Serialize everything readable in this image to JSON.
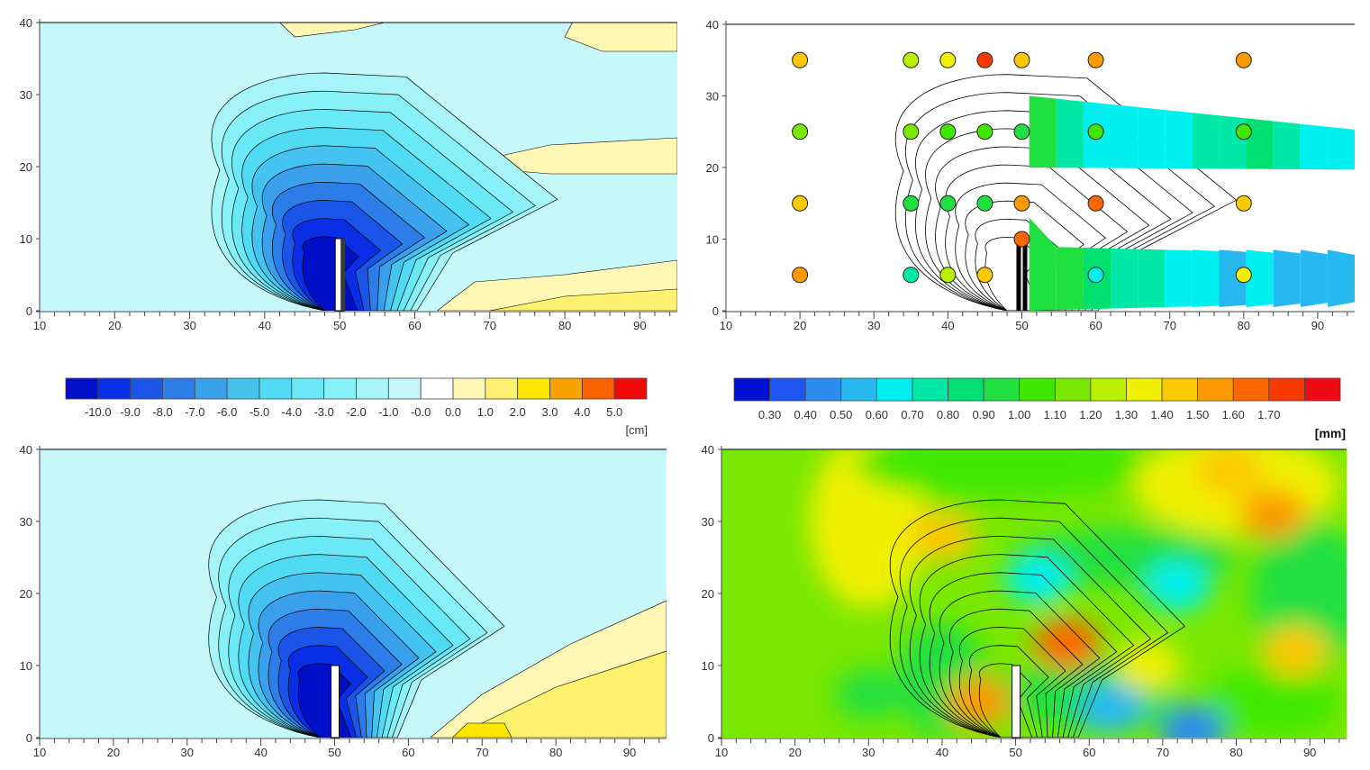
{
  "chart_data": [
    {
      "type": "heatmap",
      "panel": "top-left",
      "title": "",
      "xlabel": "",
      "ylabel": "",
      "xlim": [
        10,
        95
      ],
      "ylim": [
        0,
        40
      ],
      "x_ticks": [
        10,
        20,
        30,
        40,
        50,
        60,
        70,
        80,
        90
      ],
      "y_ticks": [
        0,
        10,
        20,
        30,
        40
      ],
      "structure": {
        "x": 50,
        "y_from": 0,
        "y_to": 10
      },
      "scour_center": {
        "x": 48,
        "y": 6
      },
      "contour_levels": [
        -10,
        -9,
        -8,
        -7,
        -6,
        -5,
        -4,
        -3,
        -2,
        -1
      ],
      "colorbar": "depth"
    },
    {
      "type": "scatter",
      "panel": "top-right",
      "title": "",
      "xlabel": "",
      "ylabel": "",
      "xlim": [
        10,
        95
      ],
      "ylim": [
        0,
        40
      ],
      "x_ticks": [
        10,
        20,
        30,
        40,
        50,
        60,
        70,
        80,
        90
      ],
      "y_ticks": [
        0,
        10,
        20,
        30,
        40
      ],
      "structure": {
        "x": 50,
        "y_from": 0,
        "y_to": 10
      },
      "points": [
        {
          "x": 20,
          "y": 35,
          "v": 1.45
        },
        {
          "x": 35,
          "y": 35,
          "v": 1.25
        },
        {
          "x": 40,
          "y": 35,
          "v": 1.35
        },
        {
          "x": 45,
          "y": 35,
          "v": 1.75
        },
        {
          "x": 50,
          "y": 35,
          "v": 1.45
        },
        {
          "x": 60,
          "y": 35,
          "v": 1.6
        },
        {
          "x": 80,
          "y": 35,
          "v": 1.55
        },
        {
          "x": 20,
          "y": 25,
          "v": 1.15
        },
        {
          "x": 35,
          "y": 25,
          "v": 1.2
        },
        {
          "x": 40,
          "y": 25,
          "v": 1.05
        },
        {
          "x": 45,
          "y": 25,
          "v": 1.1
        },
        {
          "x": 50,
          "y": 25,
          "v": 1.0
        },
        {
          "x": 60,
          "y": 25,
          "v": 1.05
        },
        {
          "x": 80,
          "y": 25,
          "v": 1.1
        },
        {
          "x": 20,
          "y": 15,
          "v": 1.45
        },
        {
          "x": 35,
          "y": 15,
          "v": 1.0
        },
        {
          "x": 40,
          "y": 15,
          "v": 1.0
        },
        {
          "x": 45,
          "y": 15,
          "v": 0.95
        },
        {
          "x": 50,
          "y": 15,
          "v": 1.55
        },
        {
          "x": 60,
          "y": 15,
          "v": 1.65
        },
        {
          "x": 80,
          "y": 15,
          "v": 1.45
        },
        {
          "x": 50,
          "y": 10,
          "v": 1.7
        },
        {
          "x": 20,
          "y": 5,
          "v": 1.55
        },
        {
          "x": 35,
          "y": 5,
          "v": 0.75
        },
        {
          "x": 40,
          "y": 5,
          "v": 1.25
        },
        {
          "x": 45,
          "y": 5,
          "v": 1.45
        },
        {
          "x": 60,
          "y": 5,
          "v": 0.65
        },
        {
          "x": 80,
          "y": 5,
          "v": 1.35
        }
      ],
      "bands": [
        {
          "name": "",
          "y_center_start": 25,
          "y_center_end": 22.5,
          "x_from": 51,
          "x_to": 95,
          "values": [
            0.95,
            0.8,
            0.7,
            0.65,
            0.65,
            0.7,
            0.75,
            0.8,
            0.9,
            0.8,
            0.7,
            0.62
          ]
        },
        {
          "name": "",
          "y_center_start": 4.5,
          "y_center_end": 4.5,
          "x_from": 51,
          "x_to": 95,
          "values": [
            1.0,
            0.95,
            0.9,
            0.8,
            0.75,
            0.65,
            0.62,
            0.6,
            0.62,
            0.6,
            0.6,
            0.6
          ]
        }
      ],
      "colorbar": "grain"
    },
    {
      "type": "heatmap",
      "panel": "bottom-left",
      "title": "",
      "xlabel": "",
      "ylabel": "",
      "xlim": [
        10,
        95
      ],
      "ylim": [
        0,
        40
      ],
      "x_ticks": [
        10,
        20,
        30,
        40,
        50,
        60,
        70,
        80,
        90
      ],
      "y_ticks": [
        0,
        10,
        20,
        30,
        40
      ],
      "structure": {
        "x": 50,
        "y_from": 0,
        "y_to": 10
      },
      "scour_center": {
        "x": 48,
        "y": 6
      },
      "contour_levels": [
        -10,
        -9,
        -8,
        -7,
        -6,
        -5,
        -4,
        -3,
        -2,
        -1
      ],
      "colorbar": "depth"
    },
    {
      "type": "heatmap",
      "panel": "bottom-right",
      "title": "",
      "xlabel": "",
      "ylabel": "",
      "xlim": [
        10,
        95
      ],
      "ylim": [
        0,
        40
      ],
      "x_ticks": [
        10,
        20,
        30,
        40,
        50,
        60,
        70,
        80,
        90
      ],
      "y_ticks": [
        0,
        10,
        20,
        30,
        40
      ],
      "structure": {
        "x": 50,
        "y_from": 0,
        "y_to": 10
      },
      "hotspots": [
        {
          "x": 57,
          "y": 13,
          "v": 1.7
        },
        {
          "x": 45,
          "y": 5,
          "v": 1.55
        },
        {
          "x": 74,
          "y": 1,
          "v": 0.4
        },
        {
          "x": 53,
          "y": 22,
          "v": 0.65
        },
        {
          "x": 72,
          "y": 21,
          "v": 0.7
        },
        {
          "x": 63,
          "y": 4,
          "v": 0.6
        },
        {
          "x": 79,
          "y": 37,
          "v": 1.45
        },
        {
          "x": 40,
          "y": 28,
          "v": 1.45
        },
        {
          "x": 85,
          "y": 31,
          "v": 1.55
        },
        {
          "x": 68,
          "y": 10,
          "v": 1.4
        },
        {
          "x": 88,
          "y": 12,
          "v": 1.45
        },
        {
          "x": 30,
          "y": 6,
          "v": 1.0
        }
      ],
      "background_value": 1.2,
      "colorbar": "grain"
    }
  ],
  "colorbars": {
    "depth": {
      "colors": [
        "#0010c8",
        "#0a2ee6",
        "#1a55e8",
        "#2c7de8",
        "#3aa0ec",
        "#44c2f0",
        "#50daf4",
        "#6ae8f6",
        "#88f0f7",
        "#a6f4f8",
        "#c6f8f9",
        "#ffffff",
        "#fff7b4",
        "#fff170",
        "#fbe600",
        "#f8a200",
        "#f86000",
        "#f20a0a"
      ],
      "labels": [
        "-10.0",
        "-9.0",
        "-8.0",
        "-7.0",
        "-6.0",
        "-5.0",
        "-4.0",
        "-3.0",
        "-2.0",
        "-1.0",
        "-0.0",
        "0.0",
        "1.0",
        "2.0",
        "3.0",
        "4.0",
        "5.0"
      ],
      "unit": "[cm]"
    },
    "grain": {
      "colors": [
        "#0010d0",
        "#1e55f0",
        "#2c8cf0",
        "#28b8f0",
        "#00f0f0",
        "#00e8a8",
        "#00e070",
        "#20e040",
        "#40e800",
        "#7ae800",
        "#b8f000",
        "#f0f000",
        "#fcc800",
        "#fc9a00",
        "#fc6600",
        "#f83a00",
        "#f00a14"
      ],
      "labels": [
        "0.30",
        "0.40",
        "0.50",
        "0.60",
        "0.70",
        "0.80",
        "0.90",
        "1.00",
        "1.10",
        "1.20",
        "1.30",
        "1.40",
        "1.50",
        "1.60",
        "1.70"
      ],
      "unit": "[mm]"
    }
  }
}
